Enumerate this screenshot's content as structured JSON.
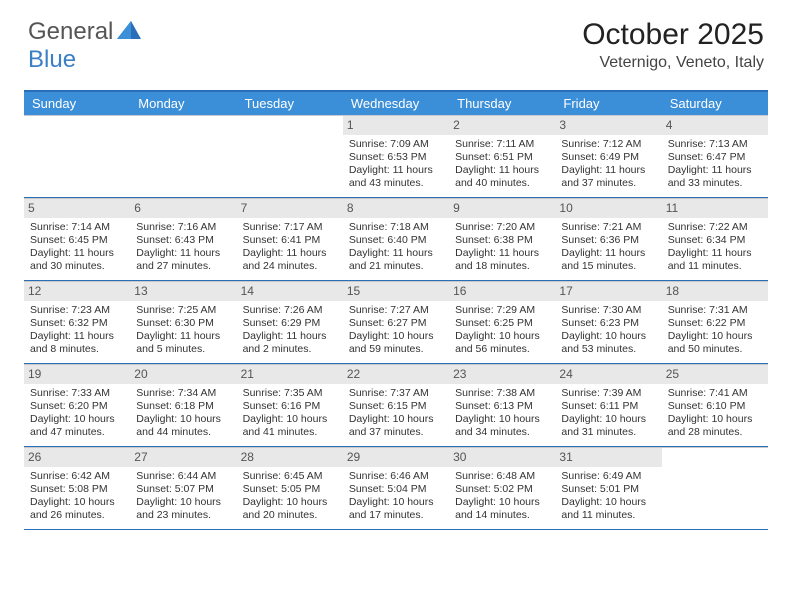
{
  "logo": {
    "text1": "General",
    "text2": "Blue"
  },
  "title": "October 2025",
  "location": "Veternigo, Veneto, Italy",
  "colors": {
    "header_bg": "#3b8ed8",
    "border": "#2a6db8",
    "daynum_bg": "#e8e8e8",
    "text": "#333333"
  },
  "day_headers": [
    "Sunday",
    "Monday",
    "Tuesday",
    "Wednesday",
    "Thursday",
    "Friday",
    "Saturday"
  ],
  "weeks": [
    [
      {
        "n": "",
        "empty": true
      },
      {
        "n": "",
        "empty": true
      },
      {
        "n": "",
        "empty": true
      },
      {
        "n": "1",
        "sunrise": "7:09 AM",
        "sunset": "6:53 PM",
        "daylight": "11 hours and 43 minutes."
      },
      {
        "n": "2",
        "sunrise": "7:11 AM",
        "sunset": "6:51 PM",
        "daylight": "11 hours and 40 minutes."
      },
      {
        "n": "3",
        "sunrise": "7:12 AM",
        "sunset": "6:49 PM",
        "daylight": "11 hours and 37 minutes."
      },
      {
        "n": "4",
        "sunrise": "7:13 AM",
        "sunset": "6:47 PM",
        "daylight": "11 hours and 33 minutes."
      }
    ],
    [
      {
        "n": "5",
        "sunrise": "7:14 AM",
        "sunset": "6:45 PM",
        "daylight": "11 hours and 30 minutes."
      },
      {
        "n": "6",
        "sunrise": "7:16 AM",
        "sunset": "6:43 PM",
        "daylight": "11 hours and 27 minutes."
      },
      {
        "n": "7",
        "sunrise": "7:17 AM",
        "sunset": "6:41 PM",
        "daylight": "11 hours and 24 minutes."
      },
      {
        "n": "8",
        "sunrise": "7:18 AM",
        "sunset": "6:40 PM",
        "daylight": "11 hours and 21 minutes."
      },
      {
        "n": "9",
        "sunrise": "7:20 AM",
        "sunset": "6:38 PM",
        "daylight": "11 hours and 18 minutes."
      },
      {
        "n": "10",
        "sunrise": "7:21 AM",
        "sunset": "6:36 PM",
        "daylight": "11 hours and 15 minutes."
      },
      {
        "n": "11",
        "sunrise": "7:22 AM",
        "sunset": "6:34 PM",
        "daylight": "11 hours and 11 minutes."
      }
    ],
    [
      {
        "n": "12",
        "sunrise": "7:23 AM",
        "sunset": "6:32 PM",
        "daylight": "11 hours and 8 minutes."
      },
      {
        "n": "13",
        "sunrise": "7:25 AM",
        "sunset": "6:30 PM",
        "daylight": "11 hours and 5 minutes."
      },
      {
        "n": "14",
        "sunrise": "7:26 AM",
        "sunset": "6:29 PM",
        "daylight": "11 hours and 2 minutes."
      },
      {
        "n": "15",
        "sunrise": "7:27 AM",
        "sunset": "6:27 PM",
        "daylight": "10 hours and 59 minutes."
      },
      {
        "n": "16",
        "sunrise": "7:29 AM",
        "sunset": "6:25 PM",
        "daylight": "10 hours and 56 minutes."
      },
      {
        "n": "17",
        "sunrise": "7:30 AM",
        "sunset": "6:23 PM",
        "daylight": "10 hours and 53 minutes."
      },
      {
        "n": "18",
        "sunrise": "7:31 AM",
        "sunset": "6:22 PM",
        "daylight": "10 hours and 50 minutes."
      }
    ],
    [
      {
        "n": "19",
        "sunrise": "7:33 AM",
        "sunset": "6:20 PM",
        "daylight": "10 hours and 47 minutes."
      },
      {
        "n": "20",
        "sunrise": "7:34 AM",
        "sunset": "6:18 PM",
        "daylight": "10 hours and 44 minutes."
      },
      {
        "n": "21",
        "sunrise": "7:35 AM",
        "sunset": "6:16 PM",
        "daylight": "10 hours and 41 minutes."
      },
      {
        "n": "22",
        "sunrise": "7:37 AM",
        "sunset": "6:15 PM",
        "daylight": "10 hours and 37 minutes."
      },
      {
        "n": "23",
        "sunrise": "7:38 AM",
        "sunset": "6:13 PM",
        "daylight": "10 hours and 34 minutes."
      },
      {
        "n": "24",
        "sunrise": "7:39 AM",
        "sunset": "6:11 PM",
        "daylight": "10 hours and 31 minutes."
      },
      {
        "n": "25",
        "sunrise": "7:41 AM",
        "sunset": "6:10 PM",
        "daylight": "10 hours and 28 minutes."
      }
    ],
    [
      {
        "n": "26",
        "sunrise": "6:42 AM",
        "sunset": "5:08 PM",
        "daylight": "10 hours and 26 minutes."
      },
      {
        "n": "27",
        "sunrise": "6:44 AM",
        "sunset": "5:07 PM",
        "daylight": "10 hours and 23 minutes."
      },
      {
        "n": "28",
        "sunrise": "6:45 AM",
        "sunset": "5:05 PM",
        "daylight": "10 hours and 20 minutes."
      },
      {
        "n": "29",
        "sunrise": "6:46 AM",
        "sunset": "5:04 PM",
        "daylight": "10 hours and 17 minutes."
      },
      {
        "n": "30",
        "sunrise": "6:48 AM",
        "sunset": "5:02 PM",
        "daylight": "10 hours and 14 minutes."
      },
      {
        "n": "31",
        "sunrise": "6:49 AM",
        "sunset": "5:01 PM",
        "daylight": "10 hours and 11 minutes."
      },
      {
        "n": "",
        "empty": true
      }
    ]
  ],
  "labels": {
    "sunrise": "Sunrise:",
    "sunset": "Sunset:",
    "daylight": "Daylight:"
  }
}
